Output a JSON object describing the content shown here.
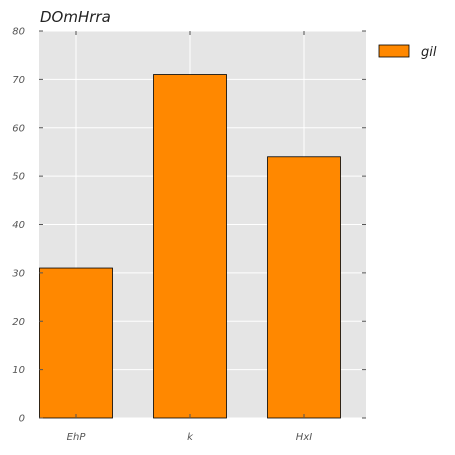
{
  "chart_data": {
    "type": "bar",
    "title": "DOmHrra",
    "xlabel": "",
    "ylabel": "",
    "categories": [
      "EhP",
      "k",
      "HxI"
    ],
    "series": [
      {
        "name": "gil",
        "values": [
          31,
          71,
          54
        ],
        "color": "#ff8800"
      }
    ],
    "ylim": [
      0,
      80
    ],
    "yticks": [
      0,
      10,
      20,
      30,
      40,
      50,
      60,
      70,
      80
    ],
    "grid": true,
    "legend": "top-right",
    "background": "#e5e5e5",
    "gridline_color": "#ffffff"
  }
}
